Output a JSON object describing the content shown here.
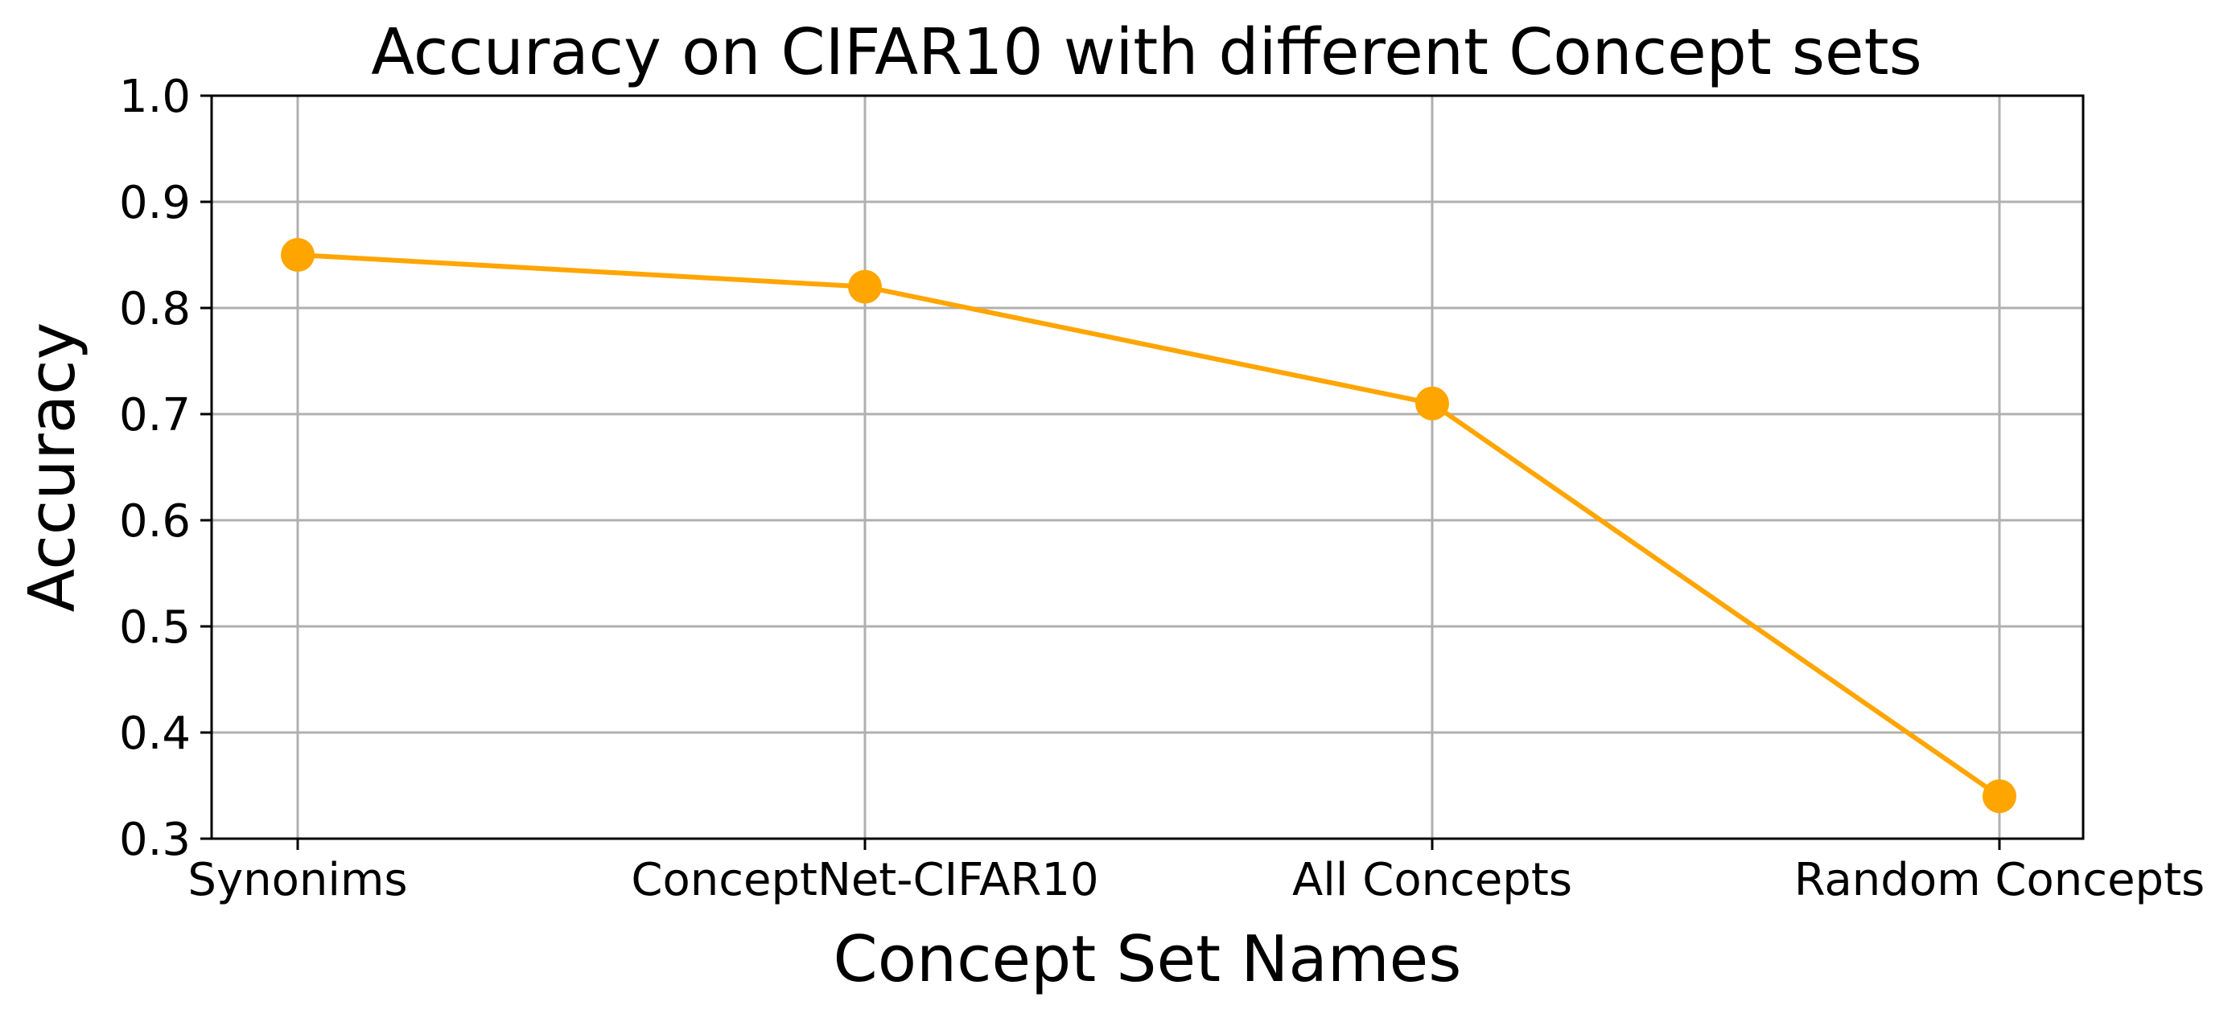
{
  "chart_data": {
    "type": "line",
    "title": "Accuracy on CIFAR10 with different Concept sets",
    "xlabel": "Concept Set Names",
    "ylabel": "Accuracy",
    "categories": [
      "Synonims",
      "ConceptNet-CIFAR10",
      "All Concepts",
      "Random Concepts"
    ],
    "series": [
      {
        "values": [
          0.85,
          0.82,
          0.71,
          0.34
        ]
      }
    ],
    "ylim": [
      0.3,
      1.0
    ],
    "yticks": [
      "0.3",
      "0.4",
      "0.5",
      "0.6",
      "0.7",
      "0.8",
      "0.9",
      "1.0"
    ],
    "grid": true,
    "colors": {
      "line": "#ffa500",
      "marker": "#ffa500"
    },
    "marker": "circle"
  }
}
